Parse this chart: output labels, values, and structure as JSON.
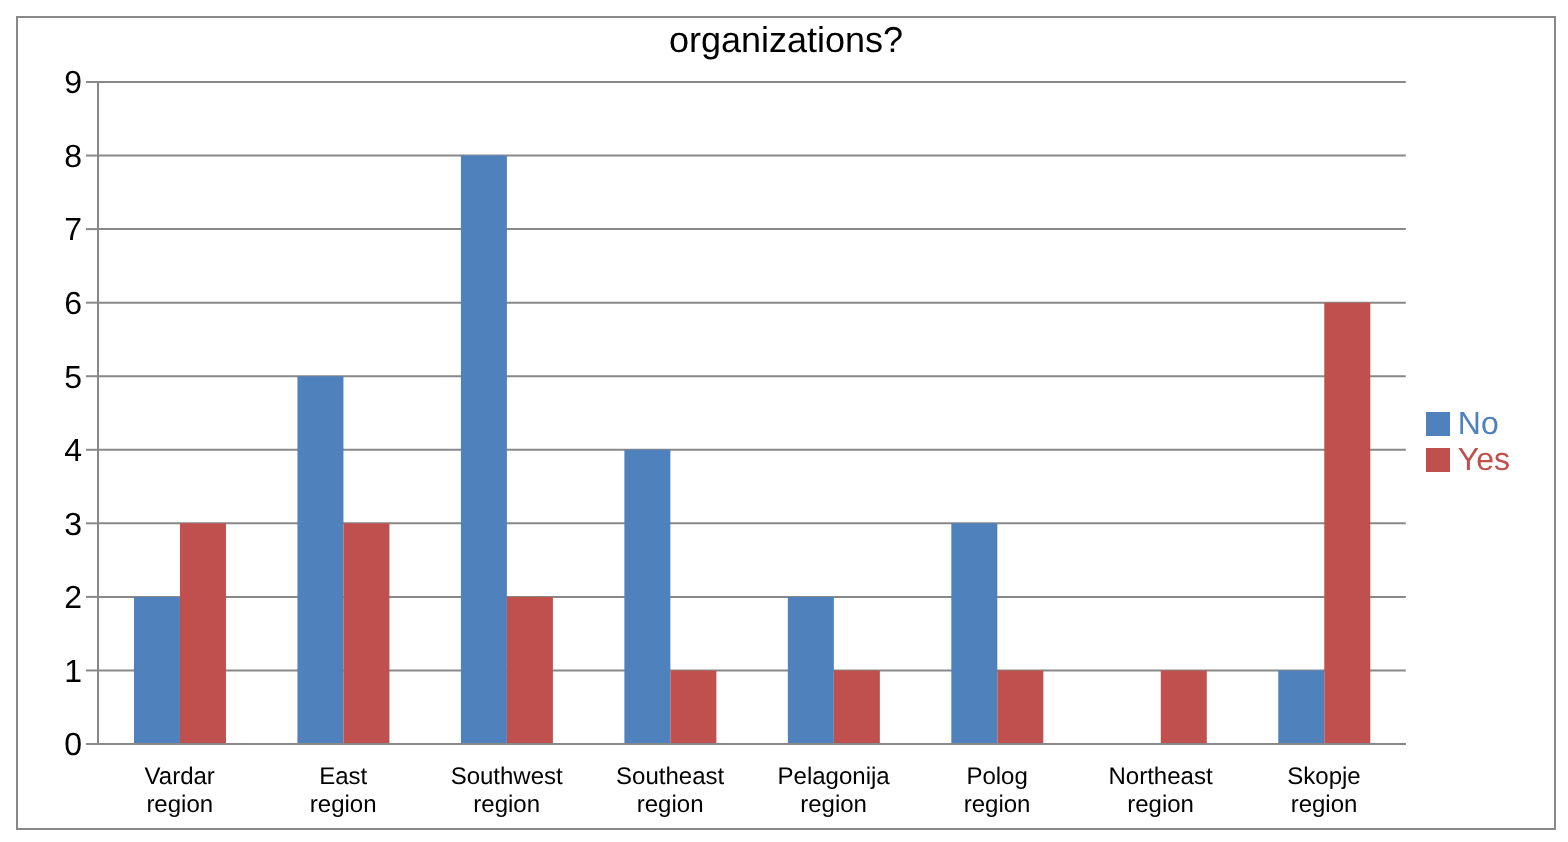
{
  "chart_data": {
    "type": "bar",
    "title": "organizations?",
    "categories": [
      "Vardar region",
      "East region",
      "Southwest region",
      "Southeast region",
      "Pelagonija region",
      "Polog region",
      "Northeast region",
      "Skopje region"
    ],
    "series": [
      {
        "name": "No",
        "color": "#4f81bd",
        "values": [
          2,
          5,
          8,
          4,
          2,
          3,
          0,
          1
        ]
      },
      {
        "name": "Yes",
        "color": "#c0504d",
        "values": [
          3,
          3,
          2,
          1,
          1,
          1,
          1,
          6
        ]
      }
    ],
    "ylim": [
      0,
      9
    ],
    "yticks": [
      0,
      1,
      2,
      3,
      4,
      5,
      6,
      7,
      8,
      9
    ],
    "grid": "y",
    "legend": "right"
  }
}
